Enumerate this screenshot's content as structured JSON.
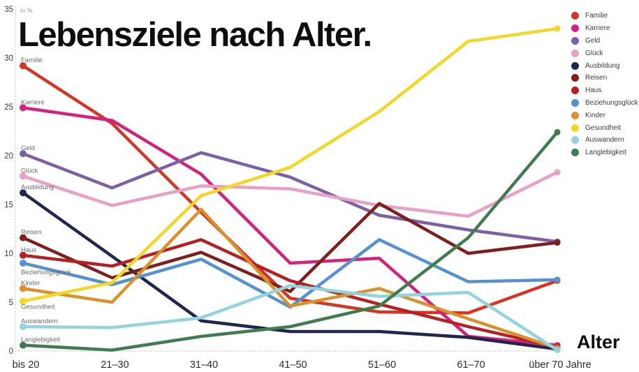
{
  "title": "Lebensziele nach Alter.",
  "unit_label": "in %",
  "x_axis_title": "Alter",
  "chart_data": {
    "type": "line",
    "categories": [
      "bis 20",
      "21–30",
      "31–40",
      "41–50",
      "51–60",
      "61–70",
      "über 70 Jahre"
    ],
    "y_ticks": [
      0,
      5,
      10,
      15,
      20,
      25,
      30,
      35
    ],
    "ylim": [
      0,
      35
    ],
    "grid": false,
    "legend_position": "top-right",
    "xlabel": "Alter",
    "ylabel": "in %",
    "series": [
      {
        "name": "Familie",
        "color": "#d53522",
        "values": [
          29.2,
          23.3,
          14.2,
          5.4,
          4.0,
          3.9,
          7.2
        ]
      },
      {
        "name": "Karriere",
        "color": "#d4217c",
        "values": [
          24.9,
          23.6,
          18.1,
          9.0,
          9.5,
          1.5,
          0.6
        ]
      },
      {
        "name": "Geld",
        "color": "#7d5fa6",
        "values": [
          20.2,
          16.7,
          20.3,
          17.8,
          13.9,
          12.4,
          11.2
        ]
      },
      {
        "name": "Glück",
        "color": "#e8a0c5",
        "values": [
          17.9,
          14.9,
          16.9,
          16.6,
          14.9,
          13.8,
          18.3
        ]
      },
      {
        "name": "Ausbildung",
        "color": "#20264f",
        "values": [
          16.2,
          9.7,
          3.1,
          2.0,
          2.0,
          1.4,
          0.2
        ]
      },
      {
        "name": "Reisen",
        "color": "#7e1f1c",
        "values": [
          11.6,
          7.5,
          10.1,
          6.1,
          15.1,
          10.0,
          11.1
        ]
      },
      {
        "name": "Haus",
        "color": "#b52025",
        "values": [
          9.8,
          8.7,
          11.4,
          7.2,
          4.8,
          2.5,
          0.4
        ]
      },
      {
        "name": "Beziehungsglück",
        "color": "#5591d0",
        "values": [
          9.0,
          6.8,
          9.4,
          4.5,
          11.4,
          7.1,
          7.3
        ]
      },
      {
        "name": "Kinder",
        "color": "#d9912c",
        "values": [
          6.4,
          5.0,
          14.5,
          4.6,
          6.4,
          3.3,
          0.3
        ]
      },
      {
        "name": "Gesundheit",
        "color": "#f3d728",
        "values": [
          5.1,
          7.0,
          15.9,
          18.8,
          24.5,
          31.7,
          33.0
        ]
      },
      {
        "name": "Auswandern",
        "color": "#92d3de",
        "values": [
          2.5,
          2.4,
          3.4,
          6.7,
          5.6,
          6.0,
          0.1
        ]
      },
      {
        "name": "Langlebigkeit",
        "color": "#417c50",
        "values": [
          0.6,
          0.1,
          1.5,
          2.5,
          4.6,
          11.6,
          22.4
        ]
      }
    ]
  }
}
